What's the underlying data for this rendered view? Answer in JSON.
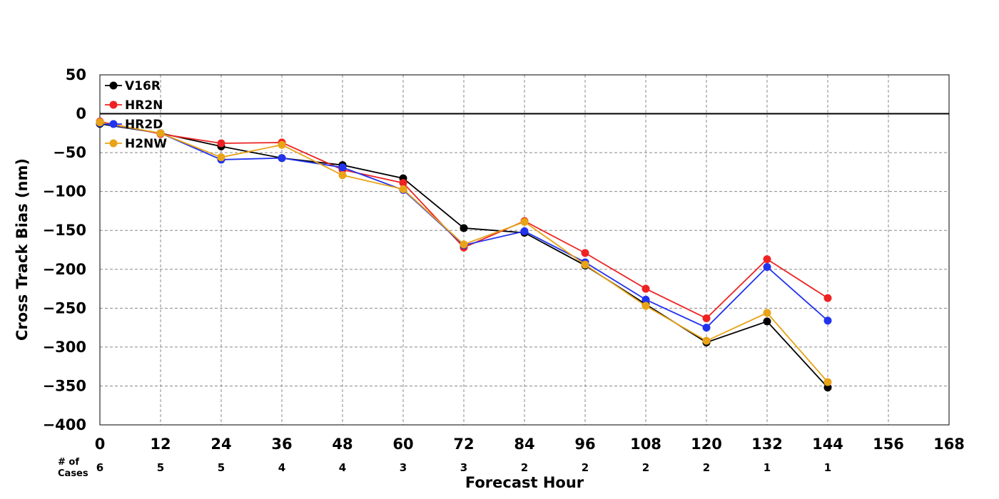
{
  "chart_data": {
    "type": "line",
    "xlabel": "Forecast Hour",
    "ylabel": "Cross Track Bias (nm)",
    "xlim": [
      0,
      168
    ],
    "ylim": [
      -400,
      50
    ],
    "x_ticks": [
      0,
      12,
      24,
      36,
      48,
      60,
      72,
      84,
      96,
      108,
      120,
      132,
      144,
      156,
      168
    ],
    "y_ticks": [
      50,
      0,
      -50,
      -100,
      -150,
      -200,
      -250,
      -300,
      -350,
      -400
    ],
    "x_tick_labels": [
      "0",
      "12",
      "24",
      "36",
      "48",
      "60",
      "72",
      "84",
      "96",
      "108",
      "120",
      "132",
      "144",
      "156",
      "168"
    ],
    "y_tick_labels": [
      "50",
      "0",
      "−50",
      "−100",
      "−150",
      "−200",
      "−250",
      "−300",
      "−350",
      "−400"
    ],
    "grid": true,
    "legend_position": "top-left",
    "x": [
      0,
      12,
      24,
      36,
      48,
      60,
      72,
      84,
      96,
      108,
      120,
      132,
      144
    ],
    "series": [
      {
        "name": "V16R",
        "color": "#000000",
        "values": [
          -13,
          -25,
          -42,
          -57,
          -66,
          -83,
          -147,
          -153,
          -195,
          -245,
          -294,
          -267,
          -352
        ]
      },
      {
        "name": "HR2N",
        "color": "#ee2222",
        "values": [
          -10,
          -26,
          -38,
          -37,
          -72,
          -89,
          -172,
          -138,
          -179,
          -225,
          -263,
          -187,
          -237
        ]
      },
      {
        "name": "HR2D",
        "color": "#2233ee",
        "values": [
          -12,
          -25,
          -59,
          -57,
          -69,
          -98,
          -169,
          -151,
          -191,
          -239,
          -275,
          -197,
          -266
        ]
      },
      {
        "name": "H2NW",
        "color": "#e8a317",
        "values": [
          -11,
          -25,
          -56,
          -40,
          -79,
          -97,
          -168,
          -139,
          -194,
          -247,
          -292,
          -256,
          -345
        ]
      }
    ],
    "cases": {
      "label_line1": "# of",
      "label_line2": "Cases",
      "values": [
        "6",
        "5",
        "5",
        "4",
        "4",
        "3",
        "3",
        "2",
        "2",
        "2",
        "2",
        "1",
        "1"
      ]
    }
  }
}
